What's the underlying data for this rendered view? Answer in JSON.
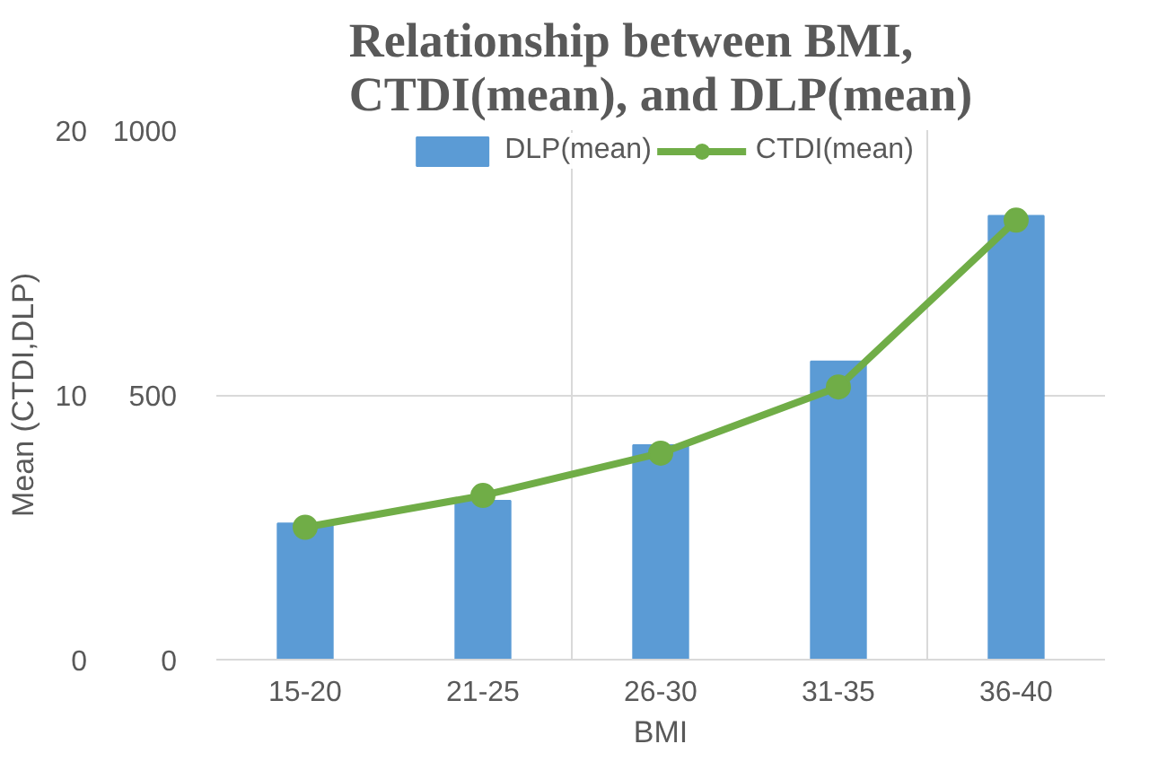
{
  "chart_data": {
    "type": "bar",
    "title": "Relationship between BMI, CTDI(mean), and DLP(mean)",
    "xlabel": "BMI",
    "ylabel": "Mean (CTDI,DLP)",
    "categories": [
      "15-20",
      "21-25",
      "26-30",
      "31-35",
      "36-40"
    ],
    "series": [
      {
        "name": "DLP(mean)",
        "axis": "y2",
        "color": "#5b9bd5",
        "values": [
          257,
          300,
          405,
          563,
          838
        ]
      },
      {
        "name": "CTDI(mean)",
        "type": "line",
        "axis": "y",
        "color": "#70ad47",
        "marker": "circle",
        "values": [
          5.0,
          6.2,
          7.8,
          10.3,
          16.6
        ]
      }
    ],
    "ylim": [
      0,
      20
    ],
    "yticks": [
      0,
      10,
      20
    ],
    "y2lim": [
      0,
      1000
    ],
    "y2ticks": [
      0,
      500,
      1000
    ],
    "grid": true,
    "legend": "top"
  }
}
